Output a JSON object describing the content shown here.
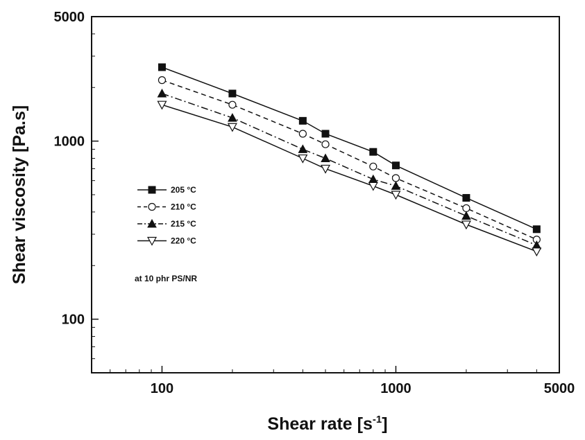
{
  "chart_data": {
    "type": "line",
    "title": "",
    "xlabel": "Shear rate [s",
    "xlabel_superscript": "-1",
    "xlabel_suffix": "]",
    "ylabel": "Shear viscosity [Pa.s]",
    "xscale": "log",
    "yscale": "log",
    "xlim": [
      50,
      5000
    ],
    "ylim": [
      50,
      5000
    ],
    "xticks": [
      100,
      1000,
      5000
    ],
    "xtick_labels": [
      "100",
      "1000",
      "5000"
    ],
    "yticks": [
      100,
      1000,
      5000
    ],
    "ytick_labels": [
      "100",
      "1000",
      "5000"
    ],
    "grid": false,
    "legend_position": "center-left",
    "annotation": "at 10 phr PS/NR",
    "series": [
      {
        "name": "205 °C",
        "marker": "square-filled",
        "line_style": "solid",
        "x": [
          100,
          200,
          400,
          500,
          800,
          1000,
          2000,
          4000
        ],
        "y": [
          2600,
          1850,
          1300,
          1100,
          870,
          730,
          480,
          320
        ]
      },
      {
        "name": "210 °C",
        "marker": "circle-open",
        "line_style": "dashed",
        "x": [
          100,
          200,
          400,
          500,
          800,
          1000,
          2000,
          4000
        ],
        "y": [
          2200,
          1600,
          1100,
          960,
          720,
          620,
          420,
          280
        ]
      },
      {
        "name": "215 °C",
        "marker": "triangle-up-filled",
        "line_style": "dashdot",
        "x": [
          100,
          200,
          400,
          500,
          800,
          1000,
          2000,
          4000
        ],
        "y": [
          1850,
          1350,
          900,
          800,
          610,
          560,
          380,
          260
        ]
      },
      {
        "name": "220 °C",
        "marker": "triangle-down-open",
        "line_style": "solid",
        "x": [
          100,
          200,
          400,
          500,
          800,
          1000,
          2000,
          4000
        ],
        "y": [
          1600,
          1200,
          800,
          700,
          560,
          500,
          340,
          240
        ]
      }
    ]
  }
}
